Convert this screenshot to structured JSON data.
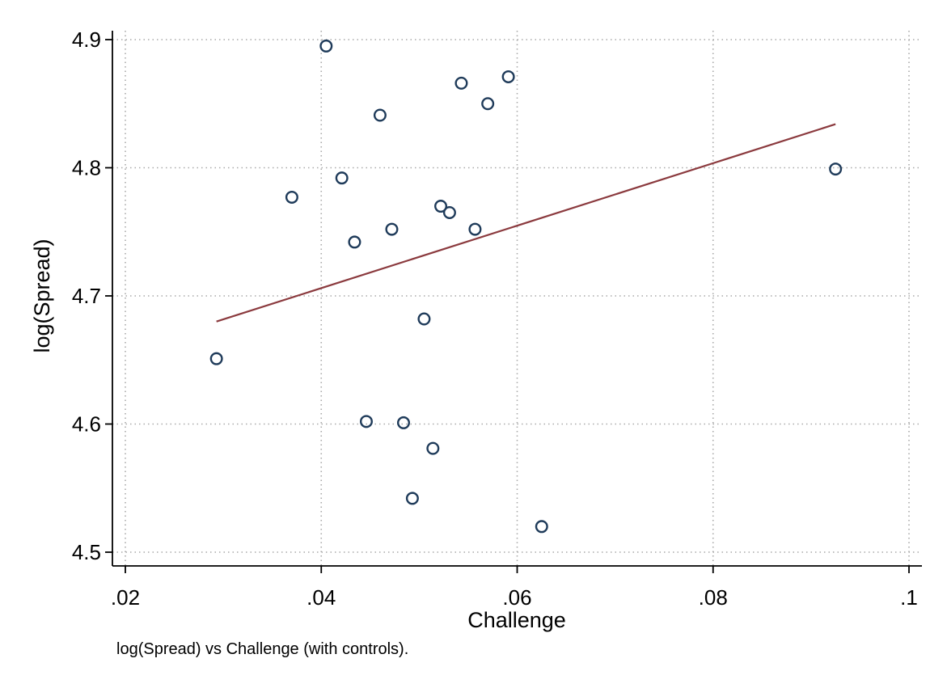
{
  "chart_data": {
    "type": "scatter",
    "xlabel": "Challenge",
    "ylabel": "log(Spread)",
    "note": "log(Spread) vs Challenge (with controls).",
    "xlim": [
      0.02,
      0.1
    ],
    "ylim": [
      4.5,
      4.9
    ],
    "x_ticks": [
      {
        "value": 0.02,
        "label": ".02"
      },
      {
        "value": 0.04,
        "label": ".04"
      },
      {
        "value": 0.06,
        "label": ".06"
      },
      {
        "value": 0.08,
        "label": ".08"
      },
      {
        "value": 0.1,
        "label": ".1"
      }
    ],
    "y_ticks": [
      {
        "value": 4.5,
        "label": "4.5"
      },
      {
        "value": 4.6,
        "label": "4.6"
      },
      {
        "value": 4.7,
        "label": "4.7"
      },
      {
        "value": 4.8,
        "label": "4.8"
      },
      {
        "value": 4.9,
        "label": "4.9"
      }
    ],
    "grid": {
      "x": true,
      "y": true,
      "style": "dotted"
    },
    "points": [
      {
        "x": 0.0293,
        "y": 4.651
      },
      {
        "x": 0.037,
        "y": 4.777
      },
      {
        "x": 0.0405,
        "y": 4.895
      },
      {
        "x": 0.0421,
        "y": 4.792
      },
      {
        "x": 0.0434,
        "y": 4.742
      },
      {
        "x": 0.0446,
        "y": 4.602
      },
      {
        "x": 0.046,
        "y": 4.841
      },
      {
        "x": 0.0472,
        "y": 4.752
      },
      {
        "x": 0.0484,
        "y": 4.601
      },
      {
        "x": 0.0493,
        "y": 4.542
      },
      {
        "x": 0.0505,
        "y": 4.682
      },
      {
        "x": 0.0514,
        "y": 4.581
      },
      {
        "x": 0.0522,
        "y": 4.77
      },
      {
        "x": 0.0531,
        "y": 4.765
      },
      {
        "x": 0.0543,
        "y": 4.866
      },
      {
        "x": 0.0557,
        "y": 4.752
      },
      {
        "x": 0.057,
        "y": 4.85
      },
      {
        "x": 0.0591,
        "y": 4.871
      },
      {
        "x": 0.0625,
        "y": 4.52
      },
      {
        "x": 0.0925,
        "y": 4.799
      }
    ],
    "fit_line": {
      "x": [
        0.0293,
        0.0925
      ],
      "y": [
        4.68,
        4.834
      ]
    },
    "colors": {
      "marker": "#1f3b5a",
      "fit_line": "#8b3a3e",
      "grid": "#a9a9a9",
      "axis": "#000000"
    }
  }
}
